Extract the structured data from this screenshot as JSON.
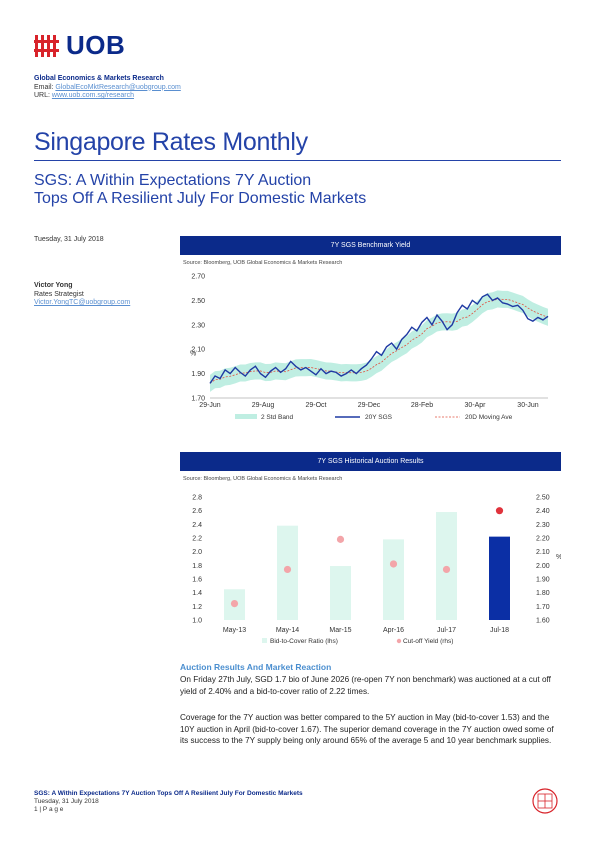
{
  "header": {
    "logo_text": "UOB",
    "department": "Global Economics & Markets Research",
    "email_label": "Email: ",
    "email": "GlobalEcoMktResearch@uobgroup.com",
    "url_label": "URL: ",
    "url": "www.uob.com.sg/research"
  },
  "title": "Singapore Rates Monthly",
  "subtitle_line1": "SGS: A Within Expectations 7Y Auction",
  "subtitle_line2": "Tops Off A Resilient July For Domestic Markets",
  "date": "Tuesday, 31 July 2018",
  "author": {
    "name": "Victor Yong",
    "role": "Rates Strategist",
    "email": "Victor.YongTC@uobgroup.com"
  },
  "chart_data": [
    {
      "type": "line",
      "title": "7Y SGS Benchmark Yield",
      "source": "Source: Bloomberg, UOB Global Economics & Markets Research",
      "ylabel": "%",
      "ylim": [
        1.7,
        2.7
      ],
      "yticks": [
        "2.70",
        "2.50",
        "2.30",
        "2.10",
        "1.90",
        "1.70"
      ],
      "xticks": [
        "29-Jun",
        "29-Aug",
        "29-Oct",
        "29-Dec",
        "28-Feb",
        "30-Apr",
        "30-Jun"
      ],
      "legend": [
        "2 Std Band",
        "20Y SGS",
        "20D Moving Ave"
      ],
      "colors": {
        "band": "#bfeee2",
        "line": "#1f3aa3",
        "ma": "#e0503f"
      },
      "series": [
        {
          "name": "20Y SGS",
          "values": [
            1.82,
            1.88,
            1.86,
            1.93,
            1.9,
            1.95,
            1.91,
            1.88,
            1.93,
            1.96,
            1.9,
            1.87,
            1.92,
            1.95,
            1.91,
            1.94,
            2.0,
            1.96,
            1.93,
            1.95,
            1.92,
            1.89,
            1.94,
            1.9,
            1.92,
            1.91,
            1.88,
            1.9,
            1.93,
            1.9,
            1.94,
            1.97,
            2.02,
            2.08,
            2.05,
            2.12,
            2.15,
            2.1,
            2.18,
            2.22,
            2.28,
            2.25,
            2.32,
            2.36,
            2.3,
            2.38,
            2.33,
            2.26,
            2.3,
            2.4,
            2.46,
            2.43,
            2.5,
            2.47,
            2.53,
            2.55,
            2.5,
            2.52,
            2.48,
            2.47,
            2.45,
            2.46,
            2.42,
            2.35,
            2.33,
            2.36,
            2.34,
            2.37
          ]
        }
      ]
    },
    {
      "type": "bar",
      "title": "7Y SGS Historical Auction Results",
      "source": "Source: Bloomberg, UOB Global Economics & Markets Research",
      "categories": [
        "May-13",
        "May-14",
        "Mar-15",
        "Apr-16",
        "Jul-17",
        "Jul-18"
      ],
      "ylim": [
        1.0,
        2.8
      ],
      "yticks_left": [
        "2.8",
        "2.6",
        "2.4",
        "2.2",
        "2.0",
        "1.8",
        "1.6",
        "1.4",
        "1.2",
        "1.0"
      ],
      "y2lim": [
        1.6,
        2.5
      ],
      "yticks_right": [
        "2.50",
        "2.40",
        "2.30",
        "2.20",
        "2.10",
        "2.00",
        "1.90",
        "1.80",
        "1.70",
        "1.60"
      ],
      "y2label": "%",
      "legend": [
        "Bid-to-Cover Ratio (lhs)",
        "Cut-off Yield (rhs)"
      ],
      "colors": {
        "bar": "#ddf6ee",
        "bar_highlight": "#0b2fa5",
        "dot": "#f3a5a9"
      },
      "series": [
        {
          "name": "Bid-to-Cover Ratio (lhs)",
          "values": [
            1.45,
            2.38,
            1.79,
            2.18,
            2.58,
            2.22
          ]
        },
        {
          "name": "Cut-off Yield (rhs)",
          "values": [
            1.72,
            1.97,
            2.19,
            2.01,
            1.97,
            2.4
          ]
        }
      ]
    }
  ],
  "section": {
    "title": "Auction Results And Market Reaction",
    "para1": "On Friday 27th July, SGD 1.7 bio of June 2026 (re-open 7Y non benchmark) was auctioned at a cut off yield of 2.40% and a bid-to-cover ratio of 2.22 times.",
    "para2": "Coverage for the 7Y auction was better compared to the 5Y auction in May (bid-to-cover 1.53) and the 10Y auction in April (bid-to-cover 1.67). The superior demand coverage in the 7Y auction owed some of its success to the 7Y supply being only around 65% of the average 5 and 10 year benchmark supplies."
  },
  "footer": {
    "title": "SGS: A Within Expectations 7Y Auction Tops Off A Resilient July For Domestic Markets",
    "date": "Tuesday, 31 July 2018",
    "page": "1 | P a g e"
  },
  "brand_colors": {
    "navy": "#0b2a8a",
    "title_blue": "#2443a8",
    "accent_red": "#d8232a"
  }
}
